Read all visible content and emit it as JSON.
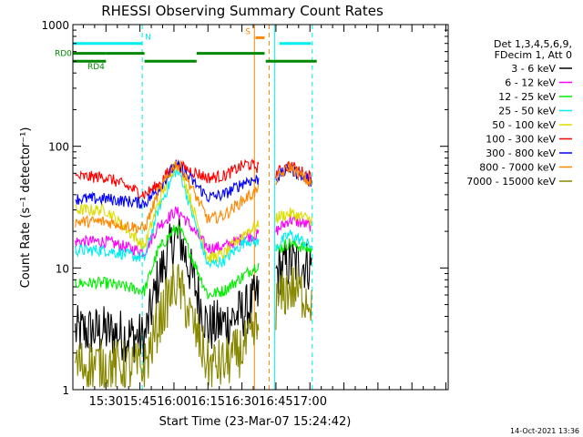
{
  "chart_data": {
    "type": "line",
    "title": "RHESSI Observing Summary Count Rates",
    "xlabel": "Start Time (23-Mar-07 15:24:42)",
    "ylabel": "Count Rate (s⁻¹ detector⁻¹)",
    "y_scale": "log",
    "ylim": [
      1,
      1000
    ],
    "xlim_minutes": [
      15.4,
      181
    ],
    "x_ticks": [
      {
        "label": "15:30",
        "min": 30
      },
      {
        "label": "15:45",
        "min": 45
      },
      {
        "label": "16:00",
        "min": 60
      },
      {
        "label": "16:15",
        "min": 75
      },
      {
        "label": "16:30",
        "min": 90
      },
      {
        "label": "16:45",
        "min": 105
      },
      {
        "label": "17:00",
        "min": 120
      }
    ],
    "y_ticks": [
      {
        "label": "1",
        "value": 1
      },
      {
        "label": "10",
        "value": 10
      },
      {
        "label": "100",
        "value": 100
      },
      {
        "label": "1000",
        "value": 1000
      }
    ],
    "legend_header": [
      "Det 1,3,4,5,6,9,",
      "FDecim 1, Att 0"
    ],
    "series": [
      {
        "name": "3 - 6 keV",
        "color": "#000000",
        "levels": [
          3.0,
          3.0,
          2.6,
          8,
          18,
          17,
          3.2,
          3.5,
          4.5,
          9,
          11,
          10.5
        ]
      },
      {
        "name": "6 - 12 keV",
        "color": "#ff00ff",
        "levels": [
          16.5,
          16.5,
          13.5,
          22,
          29,
          28,
          14.5,
          15,
          18,
          20,
          25,
          22
        ]
      },
      {
        "name": "12 - 25 keV",
        "color": "#00ee00",
        "levels": [
          7.5,
          7.5,
          6.5,
          14,
          21,
          20,
          6.0,
          6.5,
          9,
          14,
          16,
          14
        ]
      },
      {
        "name": "25 - 50 keV",
        "color": "#00eeee",
        "levels": [
          14,
          14,
          12,
          30,
          62,
          58,
          10.5,
          11.5,
          17,
          15,
          19,
          15
        ]
      },
      {
        "name": "50 - 100 keV",
        "color": "#dddd00",
        "levels": [
          30,
          30,
          15,
          34,
          72,
          68,
          12,
          13,
          20,
          26,
          28,
          25
        ]
      },
      {
        "name": "100 - 300 keV",
        "color": "#ff0000",
        "levels": [
          56,
          56,
          40,
          48,
          72,
          68,
          55,
          57,
          72,
          60,
          70,
          55
        ]
      },
      {
        "name": "300 - 800 keV",
        "color": "#0000ff",
        "levels": [
          37,
          37,
          34,
          44,
          70,
          66,
          38,
          40,
          52,
          55,
          66,
          50
        ]
      },
      {
        "name": "800 - 7000 keV",
        "color": "#ff8800",
        "levels": [
          24,
          24,
          21,
          41,
          72,
          68,
          25,
          27,
          38,
          53,
          68,
          48
        ]
      },
      {
        "name": "7000 - 15000 keV",
        "color": "#888800",
        "levels": [
          1.6,
          1.6,
          1.5,
          3.5,
          7.5,
          6.5,
          1.6,
          1.6,
          2.3,
          5.0,
          7.0,
          5.5
        ]
      }
    ],
    "flag_bars": [
      {
        "label": "N",
        "color": "#00eeee",
        "y": 700,
        "segments": [
          [
            15.4,
            46
          ],
          [
            106.5,
            120.5
          ]
        ]
      },
      {
        "label": "S",
        "color": "#ff8800",
        "y": 780,
        "segments": [
          [
            96,
            100
          ]
        ]
      },
      {
        "label": "RD0",
        "color": "#008800",
        "y": 580,
        "segments": [
          [
            15.4,
            30
          ],
          [
            30,
            47
          ],
          [
            70,
            100
          ]
        ]
      },
      {
        "label": "RD4",
        "color": "#008800",
        "y": 500,
        "segments": [
          [
            15.4,
            30
          ],
          [
            47,
            70
          ],
          [
            100.5,
            123
          ]
        ]
      }
    ],
    "vertical_markers": [
      {
        "min": 15.4,
        "color": "#00eeee",
        "style": "solid"
      },
      {
        "min": 46,
        "color": "#00eeee",
        "style": "dashed"
      },
      {
        "min": 95.5,
        "color": "#ff8800",
        "style": "solid"
      },
      {
        "min": 102,
        "color": "#ff8800",
        "style": "dashed"
      },
      {
        "min": 104.5,
        "color": "#00eeee",
        "style": "solid"
      },
      {
        "min": 121,
        "color": "#00eeee",
        "style": "dashed"
      }
    ]
  },
  "timestamp": "14-Oct-2021 13:36"
}
